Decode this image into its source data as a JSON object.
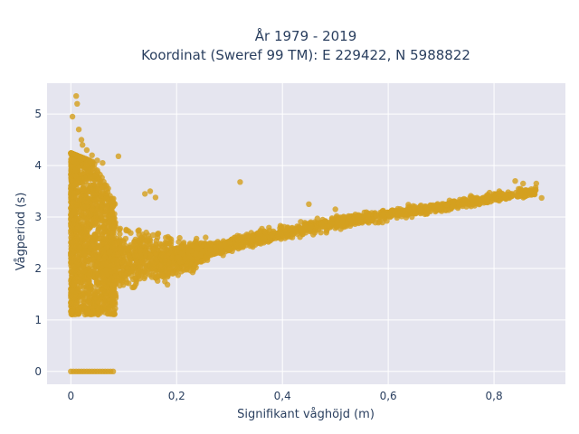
{
  "chart_data": {
    "type": "scatter",
    "title_line1": "År 1979 - 2019",
    "title_line2": "Koordinat (Sweref 99 TM): E 229422, N 5988822",
    "xlabel": "Signifikant våghöjd (m)",
    "ylabel": "Vågperiod (s)",
    "xlim": [
      -0.045,
      0.935
    ],
    "ylim": [
      -0.25,
      5.6
    ],
    "xticks": [
      0,
      0.2,
      0.4,
      0.6,
      0.8
    ],
    "xtick_labels": [
      "0",
      "0,2",
      "0,4",
      "0,6",
      "0,8"
    ],
    "yticks": [
      0,
      1,
      2,
      3,
      4,
      5
    ],
    "ytick_labels": [
      "0",
      "1",
      "2",
      "3",
      "4",
      "5"
    ],
    "grid": true,
    "marker_color": "#d4a020",
    "plot_bg": "#e5e5ef",
    "trend": {
      "description_points": [
        [
          0.0,
          2.0
        ],
        [
          0.1,
          2.05
        ],
        [
          0.2,
          2.2
        ],
        [
          0.3,
          2.45
        ],
        [
          0.4,
          2.7
        ],
        [
          0.5,
          2.88
        ],
        [
          0.6,
          3.05
        ],
        [
          0.7,
          3.2
        ],
        [
          0.8,
          3.38
        ],
        [
          0.88,
          3.5
        ]
      ]
    },
    "outliers": [
      [
        0.003,
        4.95
      ],
      [
        0.01,
        5.35
      ],
      [
        0.012,
        5.2
      ],
      [
        0.015,
        4.7
      ],
      [
        0.02,
        4.5
      ],
      [
        0.022,
        4.4
      ],
      [
        0.03,
        4.3
      ],
      [
        0.04,
        4.2
      ],
      [
        0.05,
        4.1
      ],
      [
        0.06,
        4.05
      ],
      [
        0.09,
        4.18
      ],
      [
        0.14,
        3.45
      ],
      [
        0.15,
        3.5
      ],
      [
        0.16,
        3.38
      ],
      [
        0.32,
        3.68
      ],
      [
        0.45,
        3.25
      ],
      [
        0.5,
        3.15
      ],
      [
        0.84,
        3.7
      ],
      [
        0.855,
        3.65
      ],
      [
        0.88,
        3.65
      ],
      [
        0.89,
        3.37
      ],
      [
        0.81,
        3.5
      ],
      [
        0.85,
        3.55
      ],
      [
        0.8,
        3.45
      ]
    ],
    "zero_row": {
      "y": 0,
      "x": [
        0.0,
        0.005,
        0.01,
        0.015,
        0.02,
        0.025,
        0.03,
        0.035,
        0.04,
        0.045,
        0.05,
        0.055,
        0.06,
        0.065,
        0.07,
        0.075,
        0.08
      ]
    }
  }
}
